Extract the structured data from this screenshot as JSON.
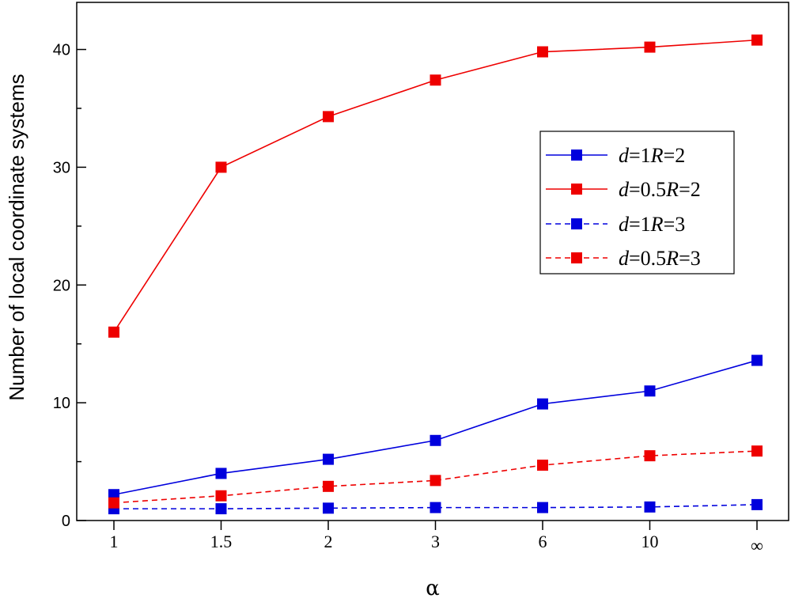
{
  "chart_data": {
    "type": "line",
    "title": "",
    "xlabel": "α",
    "ylabel": "Number of local coordinate systems",
    "categories": [
      "1",
      "1.5",
      "2",
      "3",
      "6",
      "10",
      "∞"
    ],
    "ylim": [
      0,
      44
    ],
    "yticks": [
      0,
      10,
      20,
      30,
      40
    ],
    "grid": false,
    "legend_position": "right",
    "series": [
      {
        "name": "d=1R=2",
        "legend": {
          "p1": "d",
          "p2": "=1",
          "p3": "R",
          "p4": "=2"
        },
        "color": "#0000dd",
        "dashed": false,
        "values": [
          2.2,
          4.0,
          5.2,
          6.8,
          9.9,
          11.0,
          13.6
        ]
      },
      {
        "name": "d=0.5R=2",
        "legend": {
          "p1": "d",
          "p2": "=0.5",
          "p3": "R",
          "p4": "=2"
        },
        "color": "#ee0000",
        "dashed": false,
        "values": [
          16.0,
          30.0,
          34.3,
          37.4,
          39.8,
          40.2,
          40.8
        ]
      },
      {
        "name": "d=1R=3",
        "legend": {
          "p1": "d",
          "p2": "=1",
          "p3": "R",
          "p4": "=3"
        },
        "color": "#0000dd",
        "dashed": true,
        "values": [
          1.0,
          1.0,
          1.05,
          1.1,
          1.1,
          1.15,
          1.35
        ]
      },
      {
        "name": "d=0.5R=3",
        "legend": {
          "p1": "d",
          "p2": "=0.5",
          "p3": "R",
          "p4": "=3"
        },
        "color": "#ee0000",
        "dashed": true,
        "values": [
          1.5,
          2.1,
          2.9,
          3.4,
          4.7,
          5.5,
          5.9
        ]
      }
    ]
  }
}
